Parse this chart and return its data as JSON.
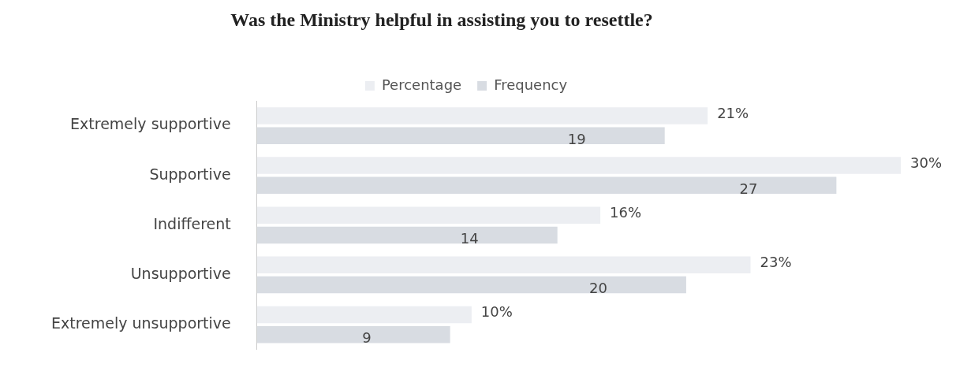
{
  "chart_data": {
    "type": "bar",
    "orientation": "horizontal",
    "title": "Was the Ministry helpful in assisting you to resettle?",
    "categories": [
      "Extremely supportive",
      "Supportive",
      "Indifferent",
      "Unsupportive",
      "Extremely unsupportive"
    ],
    "series": [
      {
        "name": "Percentage",
        "color": "#eceef2",
        "values": [
          21,
          30,
          16,
          23,
          10
        ],
        "value_labels": [
          "21%",
          "30%",
          "16%",
          "23%",
          "10%"
        ]
      },
      {
        "name": "Frequency",
        "color": "#d8dce2",
        "values": [
          19,
          27,
          14,
          20,
          9
        ],
        "value_labels": [
          "19",
          "27",
          "14",
          "20",
          "9"
        ]
      }
    ],
    "legend": "top",
    "grid": false,
    "tick_labels": "y"
  }
}
